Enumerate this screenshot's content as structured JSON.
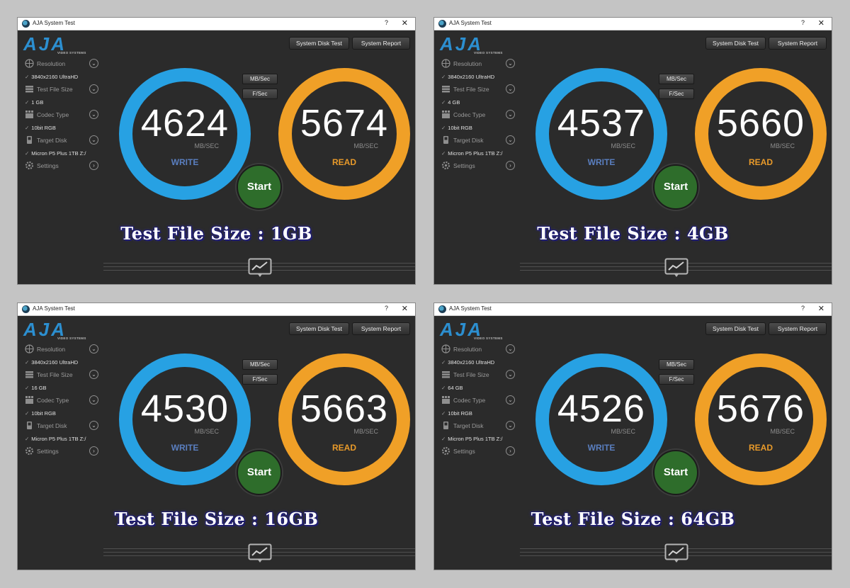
{
  "windows": [
    {
      "title": "AJA System Test",
      "help": "?",
      "close": "✕",
      "logo": "AJA",
      "logo_sub": "VIDEO SYSTEMS",
      "btn_disk": "System Disk Test",
      "btn_report": "System Report",
      "resolution_label": "Resolution",
      "resolution_value": "3840x2160 UltraHD",
      "filesize_label": "Test File Size",
      "filesize_value": "1 GB",
      "codec_label": "Codec Type",
      "codec_value": "10bit RGB",
      "disk_label": "Target Disk",
      "disk_value": "Micron P5 Plus 1TB Z:/",
      "settings_label": "Settings",
      "unit_mb": "MB/Sec",
      "unit_f": "F/Sec",
      "write_value": "4624",
      "read_value": "5674",
      "unit_label": "MB/SEC",
      "write_label": "WRITE",
      "read_label": "READ",
      "start_label": "Start",
      "caption": "Test File Size : 1GB"
    },
    {
      "title": "AJA System Test",
      "help": "?",
      "close": "✕",
      "logo": "AJA",
      "logo_sub": "VIDEO SYSTEMS",
      "btn_disk": "System Disk Test",
      "btn_report": "System Report",
      "resolution_label": "Resolution",
      "resolution_value": "3840x2160 UltraHD",
      "filesize_label": "Test File Size",
      "filesize_value": "4 GB",
      "codec_label": "Codec Type",
      "codec_value": "10bit RGB",
      "disk_label": "Target Disk",
      "disk_value": "Micron P5 Plus 1TB Z:/",
      "settings_label": "Settings",
      "unit_mb": "MB/Sec",
      "unit_f": "F/Sec",
      "write_value": "4537",
      "read_value": "5660",
      "unit_label": "MB/SEC",
      "write_label": "WRITE",
      "read_label": "READ",
      "start_label": "Start",
      "caption": "Test File Size : 4GB"
    },
    {
      "title": "AJA System Test",
      "help": "?",
      "close": "✕",
      "logo": "AJA",
      "logo_sub": "VIDEO SYSTEMS",
      "btn_disk": "System Disk Test",
      "btn_report": "System Report",
      "resolution_label": "Resolution",
      "resolution_value": "3840x2160 UltraHD",
      "filesize_label": "Test File Size",
      "filesize_value": "16 GB",
      "codec_label": "Codec Type",
      "codec_value": "10bit RGB",
      "disk_label": "Target Disk",
      "disk_value": "Micron P5 Plus 1TB Z:/",
      "settings_label": "Settings",
      "unit_mb": "MB/Sec",
      "unit_f": "F/Sec",
      "write_value": "4530",
      "read_value": "5663",
      "unit_label": "MB/SEC",
      "write_label": "WRITE",
      "read_label": "READ",
      "start_label": "Start",
      "caption": "Test File Size : 16GB"
    },
    {
      "title": "AJA System Test",
      "help": "?",
      "close": "✕",
      "logo": "AJA",
      "logo_sub": "VIDEO SYSTEMS",
      "btn_disk": "System Disk Test",
      "btn_report": "System Report",
      "resolution_label": "Resolution",
      "resolution_value": "3840x2160 UltraHD",
      "filesize_label": "Test File Size",
      "filesize_value": "64 GB",
      "codec_label": "Codec Type",
      "codec_value": "10bit RGB",
      "disk_label": "Target Disk",
      "disk_value": "Micron P5 Plus 1TB Z:/",
      "settings_label": "Settings",
      "unit_mb": "MB/Sec",
      "unit_f": "F/Sec",
      "write_value": "4526",
      "read_value": "5676",
      "unit_label": "MB/SEC",
      "write_label": "WRITE",
      "read_label": "READ",
      "start_label": "Start",
      "caption": "Test File Size : 64GB"
    }
  ],
  "colors": {
    "write_ring": "#27a1e3",
    "read_ring": "#f0a027",
    "write_text": "#5a7fc0",
    "read_text": "#e89a2a",
    "start_bg": "#2e6d2b",
    "panel_bg": "#2b2b2b",
    "caption_outline": "#1c1a6a"
  },
  "icons": [
    "app-icon",
    "resolution-icon",
    "file-size-icon",
    "codec-icon",
    "disk-icon",
    "settings-icon",
    "chevron-down-icon",
    "chevron-right-icon",
    "graph-icon"
  ]
}
